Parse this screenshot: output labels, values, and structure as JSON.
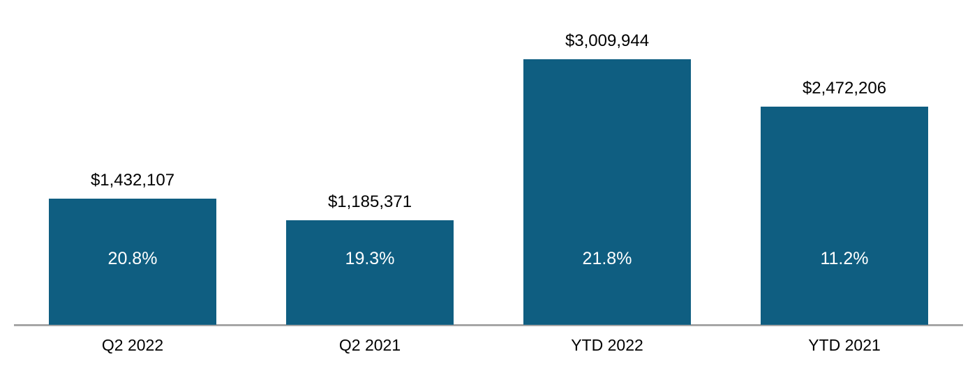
{
  "chart_data": {
    "type": "bar",
    "categories": [
      "Q2 2022",
      "Q2 2021",
      "YTD 2022",
      "YTD 2021"
    ],
    "values": [
      1432107,
      1185371,
      3009944,
      2472206
    ],
    "value_labels": [
      "$1,432,107",
      "$1,185,371",
      "$3,009,944",
      "$2,472,206"
    ],
    "percent_labels": [
      "20.8%",
      "19.3%",
      "21.8%",
      "11.2%"
    ],
    "title": "",
    "xlabel": "",
    "ylabel": "",
    "ylim": [
      0,
      3009944
    ],
    "grid": false,
    "legend": false,
    "colors": {
      "bar": "#0f5e81",
      "value_text": "#000000",
      "percent_text": "#ffffff",
      "category_text": "#000000",
      "axis_line": "#a6a6a6",
      "background": "#ffffff"
    }
  }
}
